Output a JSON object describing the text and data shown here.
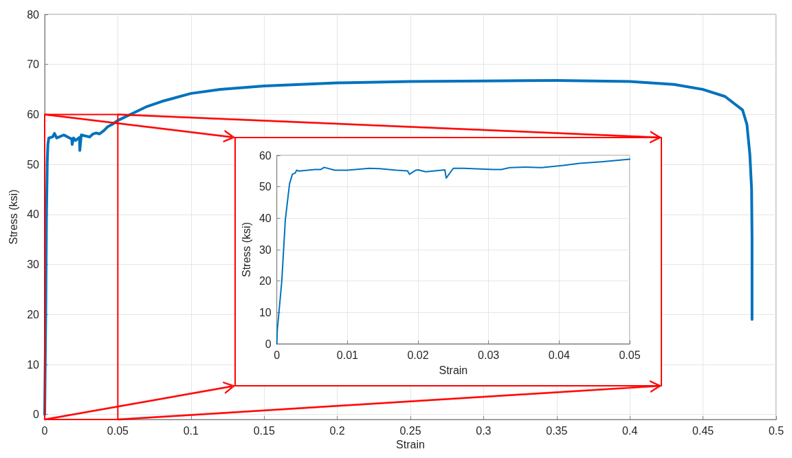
{
  "chart_data": [
    {
      "type": "line",
      "xlabel": "Strain",
      "ylabel": "Stress (ksi)",
      "xlim": [
        0,
        0.5
      ],
      "ylim": [
        -1,
        80
      ],
      "xticks": [
        0,
        0.05,
        0.1,
        0.15,
        0.2,
        0.25,
        0.3,
        0.35,
        0.4,
        0.45,
        0.5
      ],
      "yticks": [
        0,
        10,
        20,
        30,
        40,
        50,
        60,
        70,
        80
      ],
      "grid": true,
      "marker": "none",
      "line_style": "solid",
      "series": [
        {
          "color": "#0072bd",
          "x": [
            0,
            0.0007,
            0.0012,
            0.0018,
            0.0022,
            0.0028,
            0.0054,
            0.0067,
            0.0082,
            0.0131,
            0.0169,
            0.0185,
            0.0188,
            0.0197,
            0.0211,
            0.0238,
            0.024,
            0.025,
            0.0307,
            0.033,
            0.0352,
            0.0375,
            0.0406,
            0.0429,
            0.046,
            0.05,
            0.06,
            0.07,
            0.08,
            0.1,
            0.12,
            0.15,
            0.2,
            0.25,
            0.3,
            0.35,
            0.4,
            0.43,
            0.45,
            0.465,
            0.477,
            0.48,
            0.482,
            0.4832,
            0.4835,
            0.4835
          ],
          "values": [
            0,
            20,
            39.5,
            51,
            54,
            55.3,
            55.5,
            56.2,
            55.3,
            55.9,
            55.3,
            55.1,
            54,
            55.3,
            54.8,
            55.4,
            52.8,
            55.9,
            55.5,
            56.1,
            56.3,
            56.1,
            56.8,
            57.5,
            58,
            58.8,
            60.2,
            61.6,
            62.6,
            64.2,
            65,
            65.7,
            66.3,
            66.6,
            66.7,
            66.8,
            66.6,
            66,
            65,
            63.6,
            60.9,
            58,
            52,
            45,
            35,
            19
          ]
        }
      ]
    },
    {
      "type": "line",
      "xlabel": "Strain",
      "ylabel": "Stress (ksi)",
      "xlim": [
        0,
        0.05
      ],
      "ylim": [
        0,
        60
      ],
      "xticks": [
        0,
        0.01,
        0.02,
        0.03,
        0.04,
        0.05
      ],
      "yticks": [
        0,
        10,
        20,
        30,
        40,
        50,
        60
      ],
      "grid": true,
      "marker": "none",
      "line_style": "solid",
      "series": [
        {
          "color": "#0072bd",
          "x": [
            0,
            5e-05,
            0.0007,
            0.0012,
            0.0018,
            0.0022,
            0.0026,
            0.0028,
            0.0031,
            0.0054,
            0.0062,
            0.0067,
            0.0082,
            0.01,
            0.0131,
            0.0146,
            0.0169,
            0.0185,
            0.0188,
            0.0197,
            0.02,
            0.0211,
            0.0238,
            0.024,
            0.025,
            0.0265,
            0.0307,
            0.0318,
            0.033,
            0.0352,
            0.0375,
            0.0406,
            0.0429,
            0.046,
            0.05
          ],
          "values": [
            0,
            4,
            20,
            39.5,
            51,
            54,
            54.4,
            55.3,
            55,
            55.5,
            55.5,
            56.2,
            55.3,
            55.3,
            55.9,
            55.8,
            55.3,
            55.1,
            54,
            55.3,
            55.4,
            54.8,
            55.4,
            52.8,
            55.9,
            55.9,
            55.5,
            55.5,
            56.1,
            56.3,
            56.1,
            56.8,
            57.5,
            58,
            58.8
          ]
        }
      ]
    }
  ]
}
